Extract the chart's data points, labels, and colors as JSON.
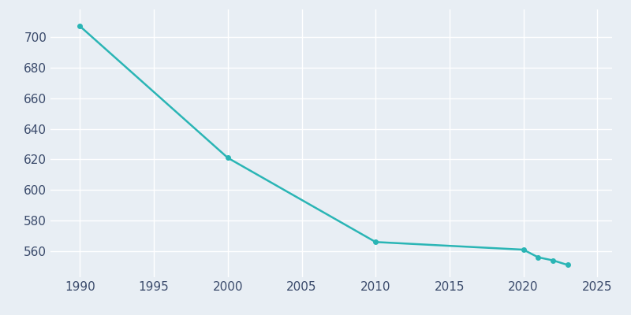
{
  "years": [
    1990,
    2000,
    2010,
    2020,
    2021,
    2022,
    2023
  ],
  "population": [
    707,
    621,
    566,
    561,
    556,
    554,
    551
  ],
  "line_color": "#2AB5B5",
  "marker_color": "#2AB5B5",
  "bg_color": "#E8EEF4",
  "grid_color": "#FFFFFF",
  "tick_color": "#3A4A6B",
  "xlim": [
    1988,
    2026
  ],
  "ylim": [
    543,
    718
  ],
  "yticks": [
    560,
    580,
    600,
    620,
    640,
    660,
    680,
    700
  ],
  "xticks": [
    1990,
    1995,
    2000,
    2005,
    2010,
    2015,
    2020,
    2025
  ],
  "linewidth": 1.8,
  "markersize": 4,
  "tick_fontsize": 11
}
